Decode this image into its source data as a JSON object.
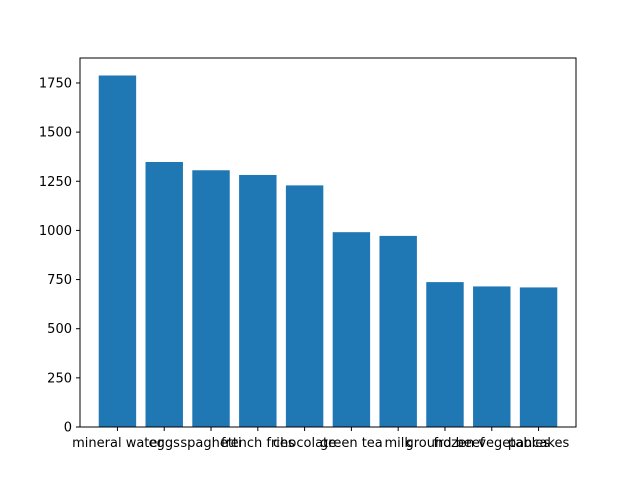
{
  "chart_data": {
    "type": "bar",
    "title": "",
    "xlabel": "",
    "ylabel": "",
    "categories": [
      "mineral water",
      "eggs",
      "spaghetti",
      "french fries",
      "chocolate",
      "green tea",
      "milk",
      "ground beef",
      "frozen vegetables",
      "pancakes"
    ],
    "values": [
      1788,
      1348,
      1306,
      1282,
      1229,
      991,
      972,
      737,
      715,
      710
    ],
    "ylim": [
      0,
      1877
    ],
    "yticks": [
      0,
      250,
      500,
      750,
      1000,
      1250,
      1500,
      1750
    ],
    "grid": false,
    "legend": "none",
    "bar_color": "#1f77b4"
  }
}
